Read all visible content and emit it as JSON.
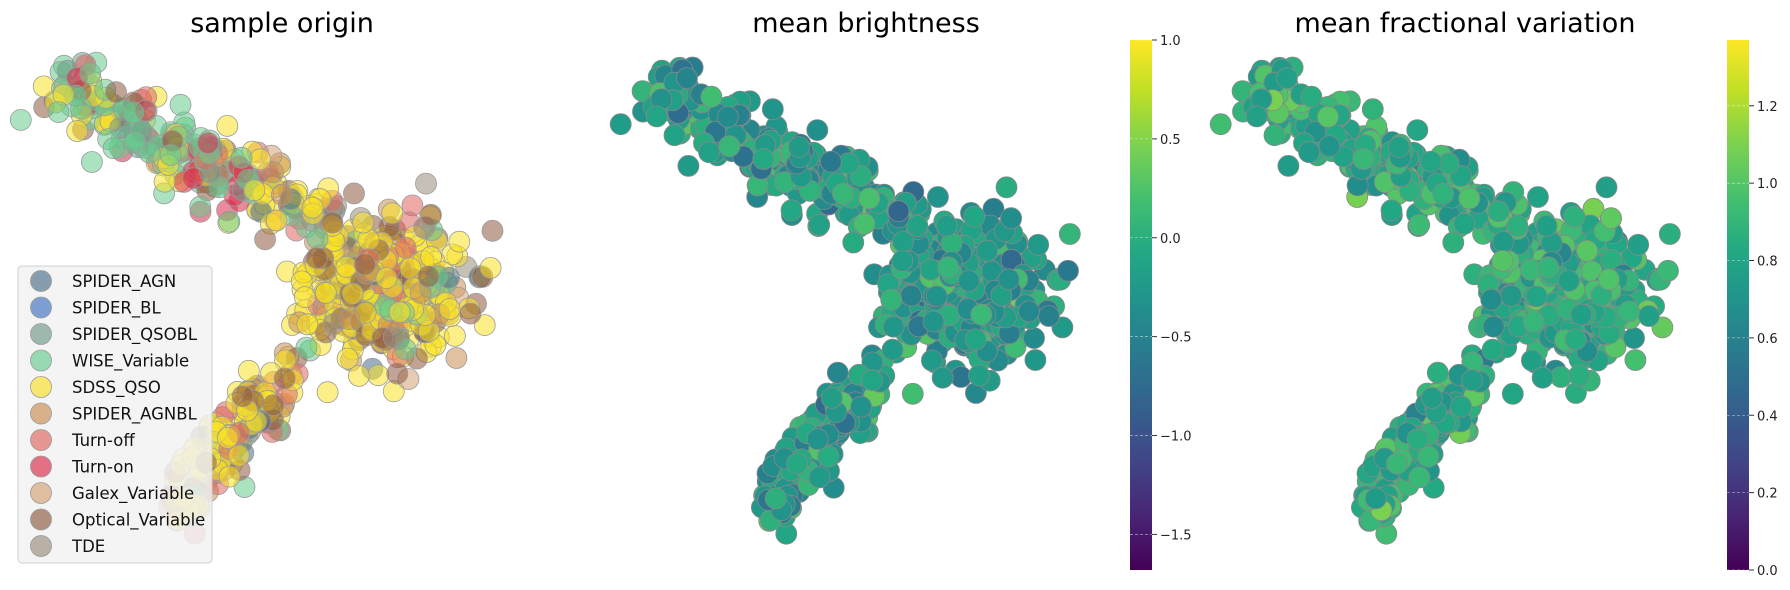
{
  "chart_data": [
    {
      "type": "scatter",
      "title": "sample origin",
      "legend": {
        "placement": "lower-left",
        "entries": [
          {
            "label": "SPIDER_AGN",
            "color": "#4a6e8a"
          },
          {
            "label": "SPIDER_BL",
            "color": "#3f6fbf"
          },
          {
            "label": "SPIDER_QSOBL",
            "color": "#6e9a88"
          },
          {
            "label": "WISE_Variable",
            "color": "#66cc8e"
          },
          {
            "label": "SDSS_QSO",
            "color": "#f9e225"
          },
          {
            "label": "SPIDER_AGNBL",
            "color": "#c98e52"
          },
          {
            "label": "Turn-off",
            "color": "#e0655e"
          },
          {
            "label": "Turn-on",
            "color": "#dc2a4b"
          },
          {
            "label": "Galex_Variable",
            "color": "#d4a275"
          },
          {
            "label": "Optical_Variable",
            "color": "#8e5a40"
          },
          {
            "label": "TDE",
            "color": "#998d7b"
          }
        ]
      },
      "grid": false,
      "axes_visible": false
    },
    {
      "type": "scatter",
      "title": "mean brightness",
      "colormap": "viridis",
      "colorbar": {
        "range": [
          -1.68,
          1.0
        ],
        "ticks": [
          1.0,
          0.5,
          0.0,
          -0.5,
          -1.0,
          -1.5
        ],
        "tick_labels": [
          "1.0",
          "0.5",
          "0.0",
          "−0.5",
          "−1.0",
          "−1.5"
        ]
      },
      "grid": false,
      "axes_visible": false
    },
    {
      "type": "scatter",
      "title": "mean fractional variation",
      "colormap": "viridis",
      "colorbar": {
        "range": [
          0.0,
          1.37
        ],
        "ticks": [
          0.0,
          0.2,
          0.4,
          0.6,
          0.8,
          1.0,
          1.2
        ],
        "tick_labels": [
          "0.0",
          "0.2",
          "0.4",
          "0.6",
          "0.8",
          "1.0",
          "1.2"
        ]
      },
      "grid": false,
      "axes_visible": false
    }
  ]
}
